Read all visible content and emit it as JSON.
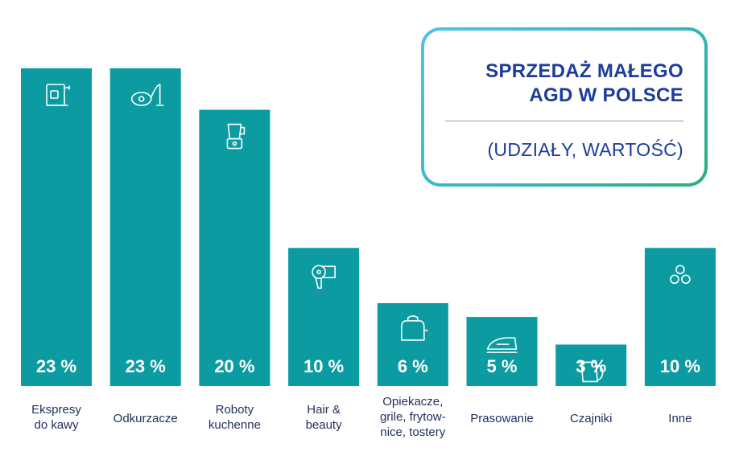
{
  "title": {
    "main_line1": "SPRZEDAŻ MAŁEGO",
    "main_line2": "AGD W POLSCE",
    "subtitle": "(UDZIAŁY, WARTOŚĆ)"
  },
  "colors": {
    "bar": "#0b9ba0",
    "label_text": "#ffffff",
    "category_text": "#1f2f5a",
    "title_text": "#1c3c9c"
  },
  "chart_data": {
    "type": "bar",
    "title": "SPRZEDAŻ MAŁEGO AGD W POLSCE (UDZIAŁY, WARTOŚĆ)",
    "xlabel": "",
    "ylabel": "",
    "ylim": [
      0,
      23
    ],
    "grid": false,
    "legend": "none",
    "categories": [
      [
        "Ekspresy",
        "do kawy"
      ],
      [
        "Odkurzacze"
      ],
      [
        "Roboty",
        "kuchenne"
      ],
      [
        "Hair &",
        "beauty"
      ],
      [
        "Opiekacze,",
        "grile, frytow-",
        "nice, tostery"
      ],
      [
        "Prasowanie"
      ],
      [
        "Czajniki"
      ],
      [
        "Inne"
      ]
    ],
    "values": [
      23,
      23,
      20,
      10,
      6,
      5,
      3,
      10
    ],
    "value_labels": [
      "23 %",
      "23 %",
      "20 %",
      "10 %",
      "6 %",
      "5 %",
      "3 %",
      "10 %"
    ],
    "icons": [
      "coffee-machine-icon",
      "vacuum-cleaner-icon",
      "blender-icon",
      "hair-dryer-icon",
      "toaster-icon",
      "iron-icon",
      "kettle-icon",
      "circles-icon"
    ]
  }
}
